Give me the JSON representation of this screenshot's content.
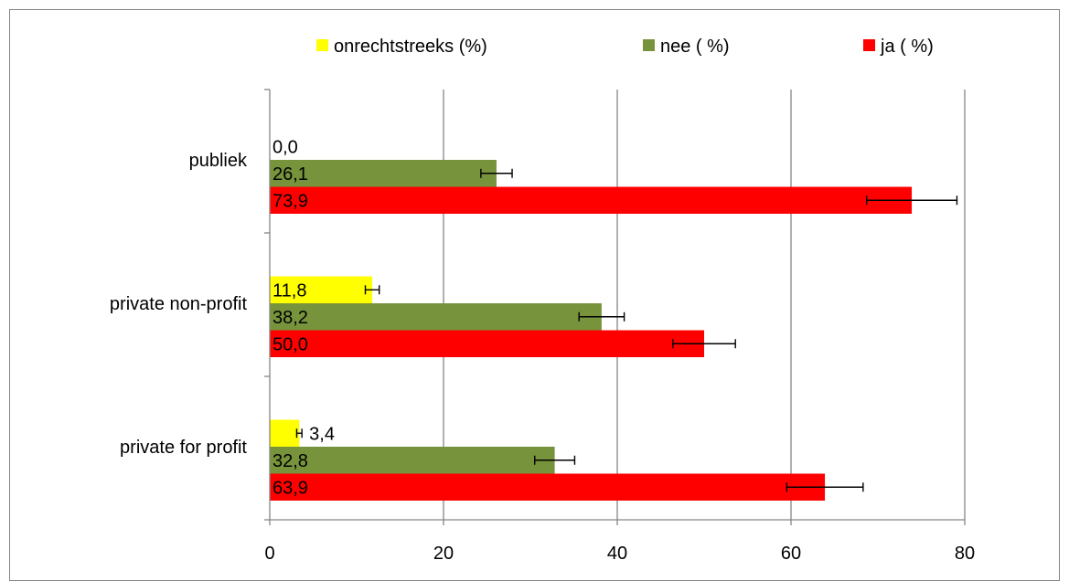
{
  "chart_data": {
    "type": "bar",
    "orientation": "horizontal",
    "categories": [
      "publiek",
      "private non-profit",
      "private for profit"
    ],
    "series": [
      {
        "name": "onrechtstreeks (%)",
        "color": "#ffff00",
        "values": [
          0.0,
          11.8,
          3.4
        ],
        "labels": [
          "0,0",
          "11,8",
          "3,4"
        ],
        "error": [
          0.0,
          0.8,
          0.3
        ]
      },
      {
        "name": "nee  ( %)",
        "color": "#77933c",
        "values": [
          26.1,
          38.2,
          32.8
        ],
        "labels": [
          "26,1",
          "38,2",
          "32,8"
        ],
        "error": [
          1.8,
          2.6,
          2.3
        ]
      },
      {
        "name": "ja ( %)",
        "color": "#ff0000",
        "values": [
          73.9,
          50.0,
          63.9
        ],
        "labels": [
          "73,9",
          "50,0",
          "63,9"
        ],
        "error": [
          5.2,
          3.6,
          4.4
        ]
      }
    ],
    "xlim": [
      0,
      80
    ],
    "xticks": [
      0,
      20,
      40,
      60,
      80
    ],
    "xtick_labels": [
      "0",
      "20",
      "40",
      "60",
      "80"
    ],
    "grid": "vertical",
    "legend": "top",
    "title": "",
    "xlabel": "",
    "ylabel": ""
  }
}
